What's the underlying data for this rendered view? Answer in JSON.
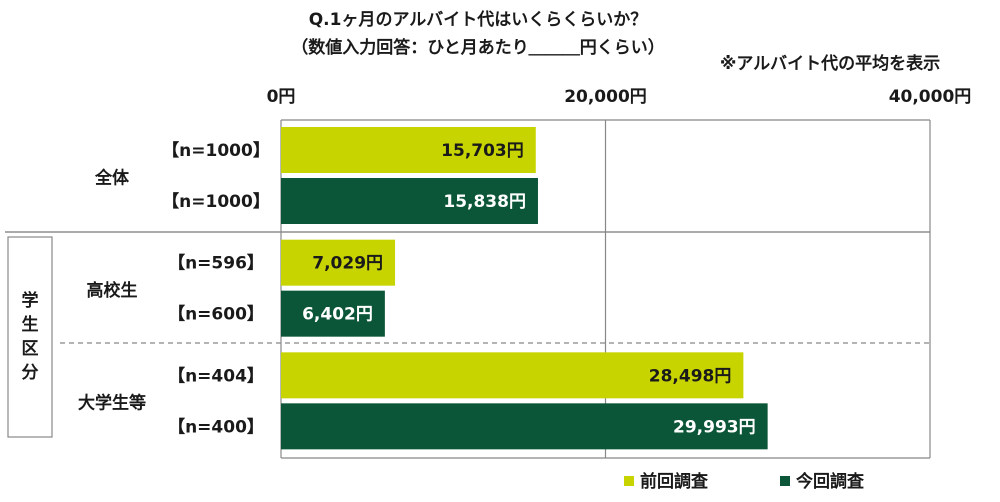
{
  "chart_data": {
    "type": "hbar",
    "title": "Q.1ヶ月のアルバイト代はいくらくらいか？",
    "subtitle": "（数値入力回答：ひと月あたり＿＿＿円くらい）",
    "note": "※アルバイト代の平均を表示",
    "group_label": "学生区分",
    "categories": [
      "全体",
      "高校生",
      "大学生等"
    ],
    "series": [
      {
        "name": "前回調査",
        "color": "#c8d400",
        "label_color": "#1a1a1a",
        "values": [
          15703,
          7029,
          28498
        ],
        "value_labels": [
          "15,703円",
          "7,029円",
          "28,498円"
        ],
        "sample_sizes": [
          "【n=1000】",
          "【n=596】",
          "【n=404】"
        ]
      },
      {
        "name": "今回調査",
        "color": "#0b5638",
        "label_color": "#ffffff",
        "values": [
          15838,
          6402,
          29993
        ],
        "value_labels": [
          "15,838円",
          "6,402円",
          "29,993円"
        ],
        "sample_sizes": [
          "【n=1000】",
          "【n=600】",
          "【n=400】"
        ]
      }
    ],
    "xlim": [
      0,
      40000
    ],
    "xticks": [
      {
        "value": 0,
        "label": "0円"
      },
      {
        "value": 20000,
        "label": "20,000円"
      },
      {
        "value": 40000,
        "label": "40,000円"
      }
    ],
    "grid": true
  }
}
